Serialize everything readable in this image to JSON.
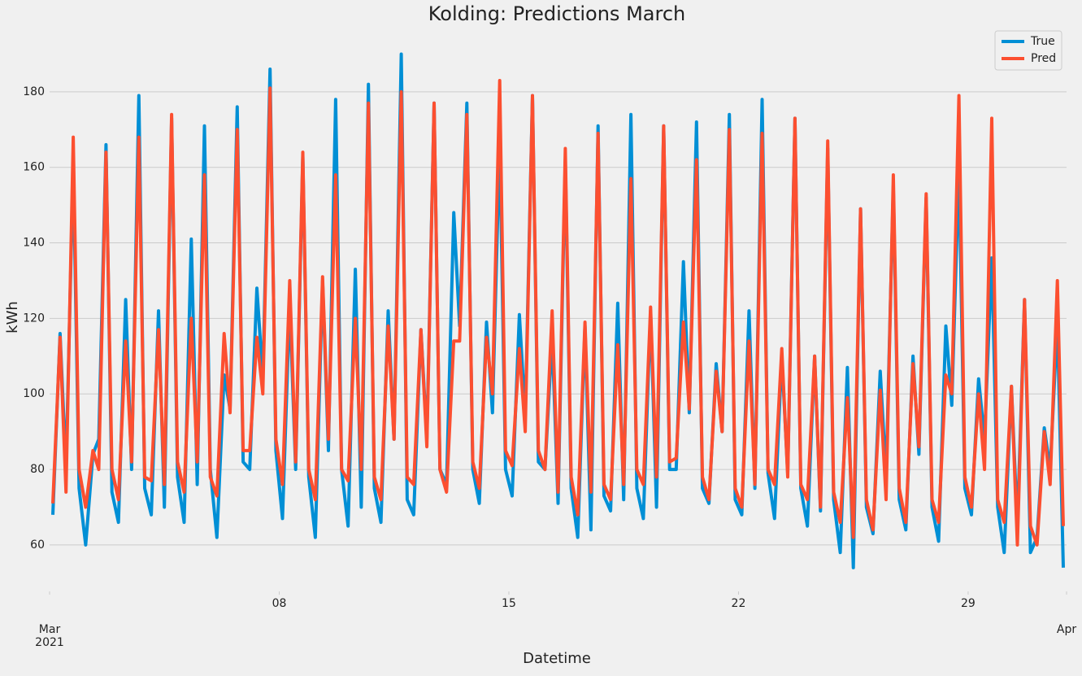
{
  "chart_data": {
    "type": "line",
    "title": "Kolding: Predictions March",
    "x_label": "Datetime",
    "y_label": "kWh",
    "x": [
      1.1,
      1.32,
      1.5,
      1.72,
      1.9,
      2.1,
      2.32,
      2.5,
      2.72,
      2.9,
      3.1,
      3.32,
      3.5,
      3.72,
      3.9,
      4.1,
      4.32,
      4.5,
      4.72,
      4.9,
      5.1,
      5.32,
      5.5,
      5.72,
      5.9,
      6.1,
      6.32,
      6.5,
      6.72,
      6.9,
      7.1,
      7.32,
      7.5,
      7.72,
      7.9,
      8.1,
      8.32,
      8.5,
      8.72,
      8.9,
      9.1,
      9.32,
      9.5,
      9.72,
      9.9,
      10.1,
      10.32,
      10.5,
      10.72,
      10.9,
      11.1,
      11.32,
      11.5,
      11.72,
      11.9,
      12.1,
      12.32,
      12.5,
      12.72,
      12.9,
      13.1,
      13.32,
      13.5,
      13.72,
      13.9,
      14.1,
      14.32,
      14.5,
      14.72,
      14.9,
      15.1,
      15.32,
      15.5,
      15.72,
      15.9,
      16.1,
      16.32,
      16.5,
      16.72,
      16.9,
      17.1,
      17.32,
      17.5,
      17.72,
      17.9,
      18.1,
      18.32,
      18.5,
      18.72,
      18.9,
      19.1,
      19.32,
      19.5,
      19.72,
      19.9,
      20.1,
      20.32,
      20.5,
      20.72,
      20.9,
      21.1,
      21.32,
      21.5,
      21.72,
      21.9,
      22.1,
      22.32,
      22.5,
      22.72,
      22.9,
      23.1,
      23.32,
      23.5,
      23.72,
      23.9,
      24.1,
      24.32,
      24.5,
      24.72,
      24.9,
      25.1,
      25.32,
      25.5,
      25.72,
      25.9,
      26.1,
      26.32,
      26.5,
      26.72,
      26.9,
      27.1,
      27.32,
      27.5,
      27.72,
      27.9,
      28.1,
      28.32,
      28.5,
      28.72,
      28.9,
      29.1,
      29.32,
      29.5,
      29.72,
      29.9,
      30.1,
      30.32,
      30.5,
      30.72,
      30.9,
      31.1,
      31.32,
      31.5,
      31.72,
      31.9
    ],
    "series": [
      {
        "name": "True",
        "color": "#008fd5",
        "values": [
          68,
          116,
          80,
          161,
          75,
          60,
          84,
          88,
          166,
          74,
          66,
          125,
          80,
          179,
          75,
          68,
          122,
          70,
          173,
          78,
          66,
          141,
          76,
          171,
          80,
          62,
          105,
          96,
          176,
          82,
          80,
          128,
          104,
          186,
          85,
          67,
          124,
          80,
          163,
          78,
          62,
          130,
          85,
          178,
          80,
          65,
          133,
          70,
          182,
          75,
          66,
          122,
          88,
          190,
          72,
          68,
          117,
          88,
          177,
          80,
          76,
          148,
          118,
          177,
          80,
          71,
          119,
          95,
          167,
          80,
          73,
          121,
          94,
          179,
          82,
          80,
          115,
          71,
          162,
          75,
          62,
          118,
          64,
          171,
          73,
          69,
          124,
          72,
          174,
          75,
          67,
          122,
          70,
          171,
          80,
          80,
          135,
          95,
          172,
          75,
          71,
          108,
          90,
          174,
          72,
          68,
          122,
          75,
          178,
          79,
          67,
          110,
          79,
          173,
          75,
          65,
          110,
          69,
          165,
          72,
          58,
          107,
          54,
          149,
          70,
          63,
          106,
          78,
          155,
          72,
          64,
          110,
          84,
          152,
          70,
          61,
          118,
          97,
          160,
          75,
          68,
          104,
          88,
          136,
          70,
          58,
          102,
          65,
          125,
          58,
          62,
          91,
          80,
          119,
          54
        ]
      },
      {
        "name": "Pred",
        "color": "#fc4f30",
        "values": [
          71,
          115,
          74,
          168,
          80,
          70,
          85,
          80,
          164,
          80,
          72,
          114,
          82,
          168,
          78,
          77,
          117,
          76,
          174,
          82,
          74,
          120,
          82,
          158,
          78,
          73,
          116,
          95,
          170,
          85,
          85,
          115,
          100,
          181,
          88,
          76,
          130,
          82,
          164,
          80,
          72,
          131,
          88,
          158,
          80,
          77,
          120,
          80,
          177,
          78,
          72,
          118,
          88,
          180,
          78,
          76,
          117,
          86,
          177,
          80,
          74,
          114,
          114,
          174,
          82,
          75,
          115,
          100,
          183,
          85,
          81,
          112,
          90,
          179,
          85,
          80,
          122,
          74,
          165,
          78,
          68,
          119,
          74,
          169,
          76,
          72,
          113,
          76,
          157,
          80,
          76,
          123,
          78,
          171,
          82,
          83,
          119,
          96,
          162,
          78,
          72,
          106,
          90,
          170,
          75,
          70,
          114,
          76,
          169,
          80,
          76,
          112,
          78,
          173,
          76,
          72,
          110,
          70,
          167,
          74,
          66,
          99,
          62,
          149,
          72,
          64,
          101,
          72,
          158,
          75,
          66,
          108,
          86,
          153,
          72,
          66,
          105,
          100,
          179,
          78,
          70,
          100,
          80,
          173,
          72,
          66,
          102,
          60,
          125,
          65,
          60,
          90,
          76,
          130,
          65
        ]
      }
    ],
    "xlim": [
      1,
      32
    ],
    "xticks": [
      {
        "value": 1,
        "label": "Mar"
      },
      {
        "value": 8,
        "label": "08"
      },
      15,
      22,
      29,
      {
        "value": 32,
        "label": "Apr"
      }
    ],
    "x_year": "2021",
    "ylim": [
      47.7,
      195.7
    ],
    "yticks": [
      60,
      80,
      100,
      120,
      140,
      160,
      180
    ],
    "grid": true,
    "legend": "upper right"
  }
}
